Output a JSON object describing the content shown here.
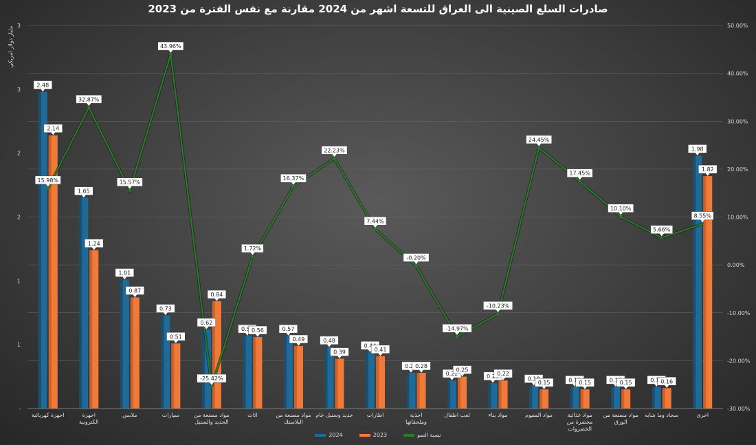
{
  "title": "صادرات السلع الصينية الى العراق للتسعة اشهر من 2024 مقارنة مع نفس الفترة من 2023",
  "chart_data": {
    "type": "bar",
    "ylabel": "مليار دولار امريكي",
    "left_ticks": [
      "-",
      "1",
      "1",
      "2",
      "2",
      "3",
      "3"
    ],
    "left_range": [
      0,
      3
    ],
    "right_ticks": [
      "-30.00%",
      "-20.00%",
      "-10.00%",
      "0.00%",
      "10.00%",
      "20.00%",
      "30.00%",
      "40.00%",
      "50.00%"
    ],
    "right_range": [
      -30,
      50
    ],
    "categories": [
      "اجهزة كهربائية",
      "اجهزة الكترونية",
      "ملابس",
      "سيارات",
      "مواد مصنعة من الحديد والستيل",
      "اثاث",
      "مواد مصنعة من البلاستك",
      "حديد وستيل خام",
      "اطارات",
      "احذية وملحقاتها",
      "لعب اطفال",
      "مواد بناء",
      "مواد المنيوم",
      "مواد غذائية محضرة من الخضروات",
      "مواد مصنعة من الورق",
      "سجاد وما شابه",
      "اخرى"
    ],
    "series": [
      {
        "name": "2024",
        "color": "#1f6a96",
        "values": [
          2.48,
          1.65,
          1.01,
          0.73,
          0.62,
          0.57,
          0.57,
          0.48,
          0.44,
          0.28,
          0.22,
          0.2,
          0.18,
          0.17,
          0.17,
          0.17,
          1.98
        ],
        "labels": [
          "2.48",
          "1.65",
          "1.01",
          "0.73",
          "0.62",
          "0.57",
          "0.57",
          "0.48",
          "0.44",
          "0.28",
          "0.22",
          "0.20",
          "0.18",
          "0.17",
          "0.17",
          "0.17",
          "1.98"
        ]
      },
      {
        "name": "2023",
        "color": "#f07a3a",
        "values": [
          2.14,
          1.24,
          0.87,
          0.51,
          0.84,
          0.56,
          0.49,
          0.39,
          0.41,
          0.28,
          0.25,
          0.22,
          0.15,
          0.15,
          0.15,
          0.16,
          1.82
        ],
        "labels": [
          "2.14",
          "1.24",
          "0.87",
          "0.51",
          "0.84",
          "0.56",
          "0.49",
          "0.39",
          "0.41",
          "0.28",
          "0.25",
          "0.22",
          "0.15",
          "0.15",
          "0.15",
          "0.16",
          "1.82"
        ]
      },
      {
        "name": "نسبة النمو",
        "color": "#2a7a2a",
        "values": [
          15.98,
          32.87,
          15.57,
          43.96,
          -25.42,
          1.72,
          16.37,
          22.23,
          7.44,
          -0.2,
          -14.97,
          -10.23,
          24.45,
          17.45,
          10.1,
          5.66,
          8.55
        ],
        "labels": [
          "15.98%",
          "32.87%",
          "15.57%",
          "43.96%",
          "-25.42%",
          "1.72%",
          "16.37%",
          "22.23%",
          "7.44%",
          "-0.20%",
          "-14.97%",
          "-10.23%",
          "24.45%",
          "17.45%",
          "10.10%",
          "5.66%",
          "8.55%"
        ]
      }
    ],
    "legend_position": "bottom",
    "grid": true
  }
}
